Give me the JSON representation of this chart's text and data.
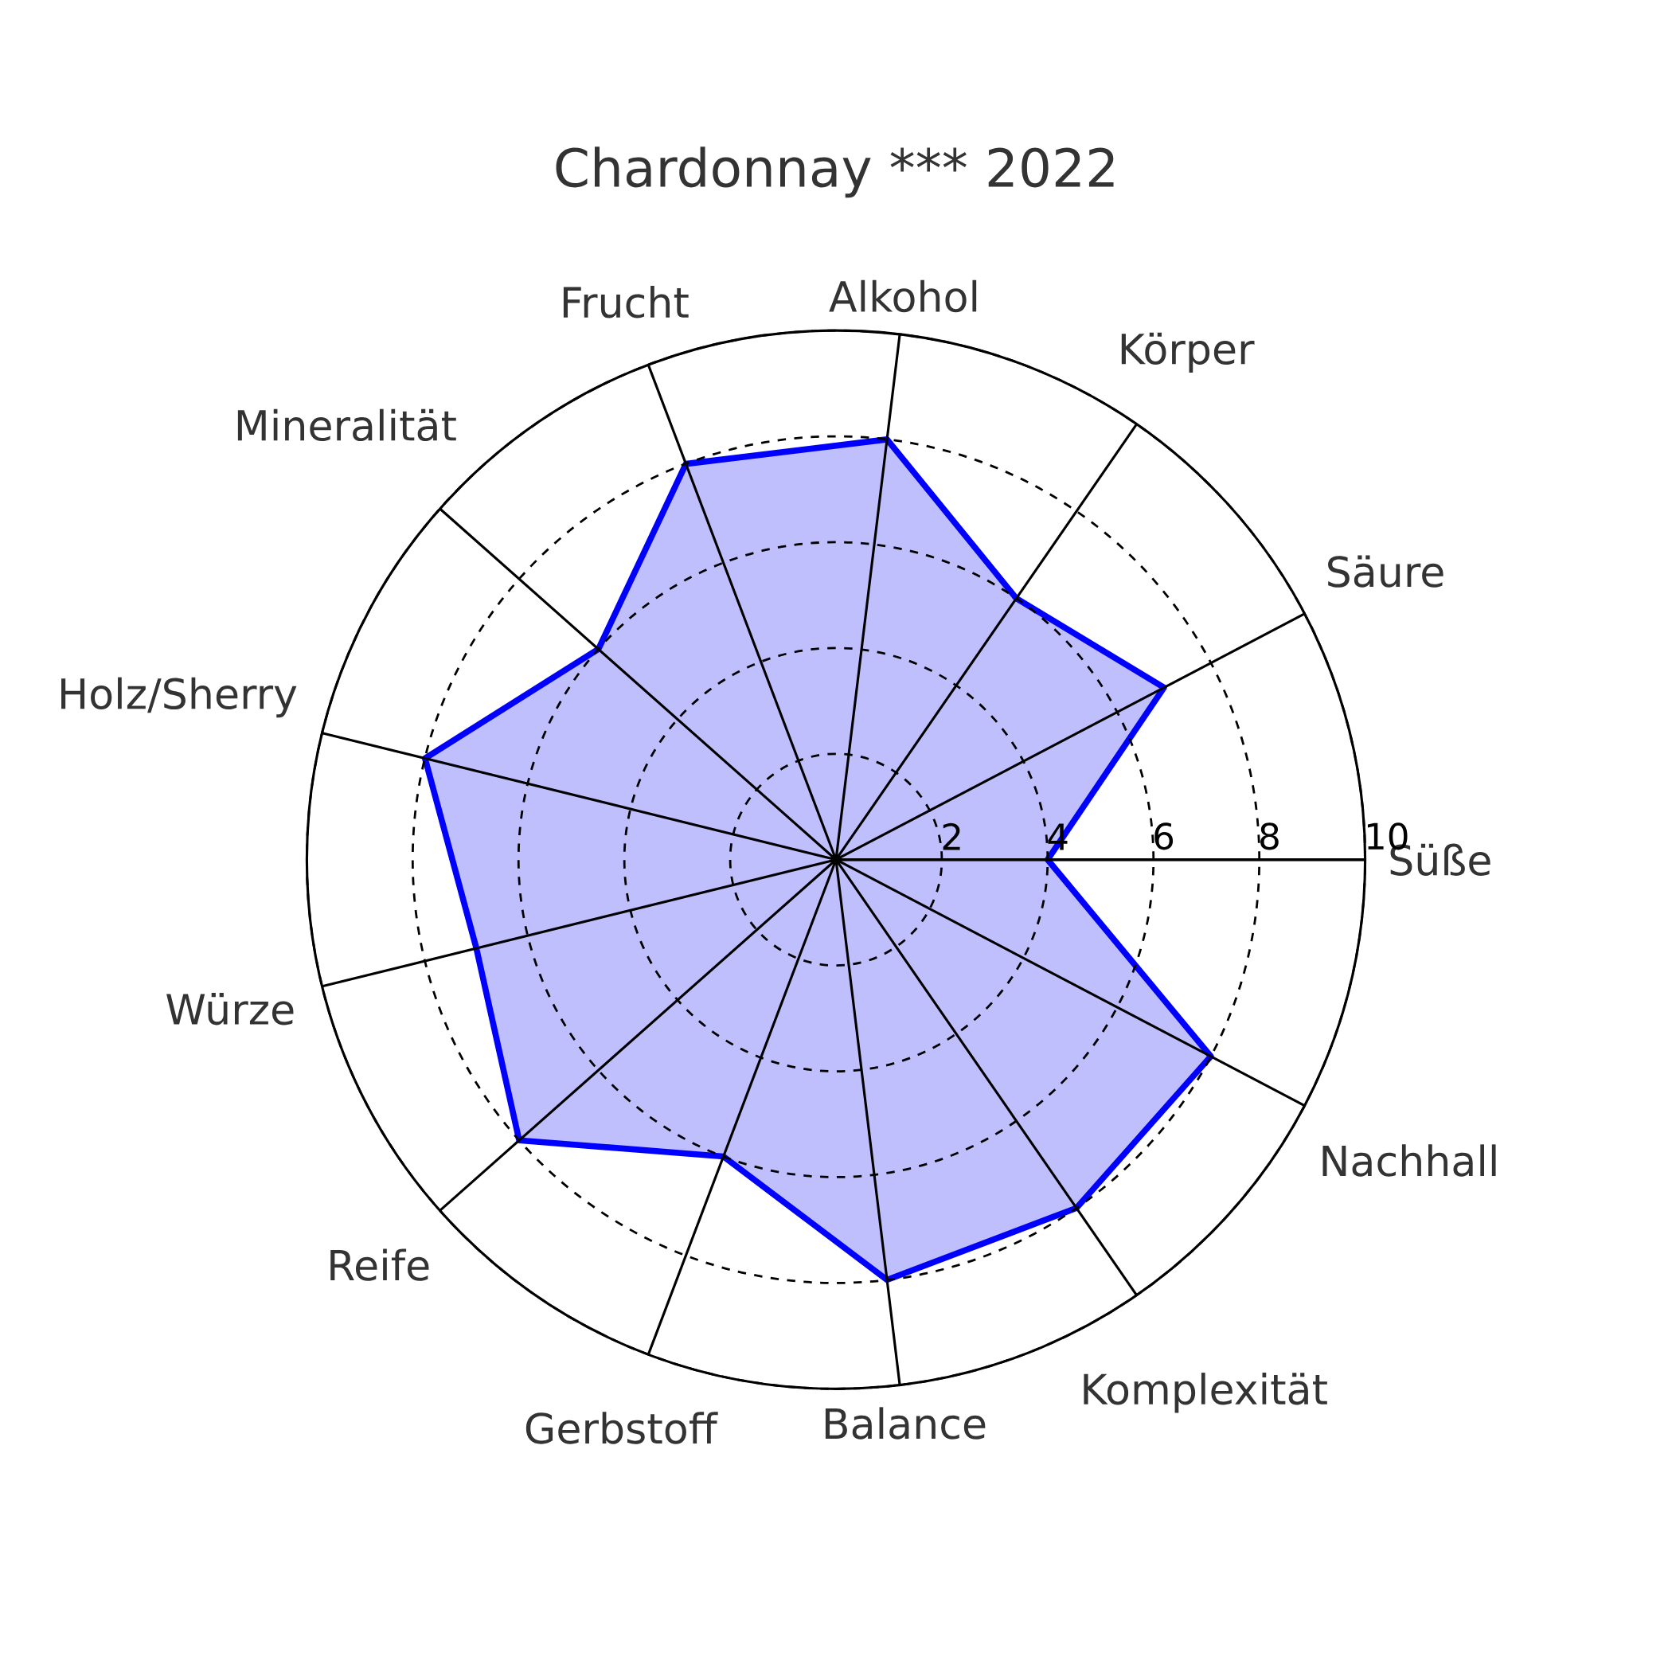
{
  "chart_data": {
    "type": "radar",
    "title": "Chardonnay *** 2022",
    "categories": [
      "Alkohol",
      "Körper",
      "Säure",
      "Süße",
      "Nachhall",
      "Komplexität",
      "Balance",
      "Gerbstoff",
      "Reife",
      "Würze",
      "Holz/Sherry",
      "Mineralität",
      "Frucht"
    ],
    "series": [
      {
        "color": "#0000ff",
        "values": [
          8,
          6,
          7,
          4,
          8,
          8,
          8,
          6,
          8,
          7,
          8,
          6,
          8
        ]
      }
    ],
    "ylim": [
      0,
      10
    ],
    "yticks": [
      2,
      4,
      6,
      8,
      10
    ],
    "grid": true
  }
}
